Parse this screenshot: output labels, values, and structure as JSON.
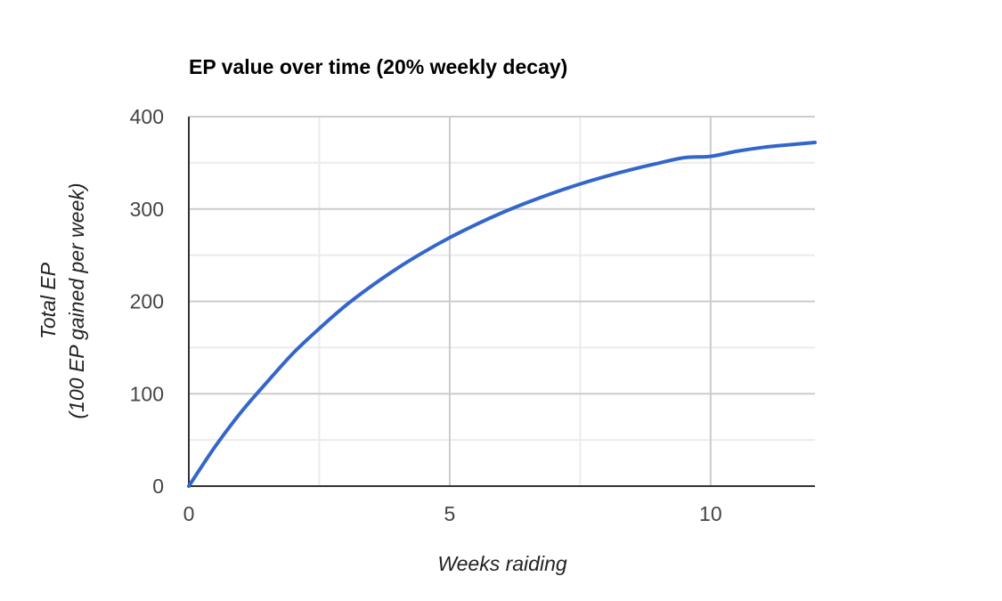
{
  "chart_data": {
    "type": "line",
    "title": "EP value over time (20% weekly decay)",
    "xlabel": "Weeks raiding",
    "ylabel_lines": [
      "Total EP",
      "(100 EP gained per week)"
    ],
    "xlim": [
      0,
      12
    ],
    "ylim": [
      0,
      400
    ],
    "x_ticks": [
      0,
      5,
      10
    ],
    "y_ticks": [
      0,
      100,
      200,
      300,
      400
    ],
    "x_minor_gridlines": [
      2.5,
      7.5
    ],
    "y_minor_gridlines": [
      50,
      150,
      250,
      350
    ],
    "grid": true,
    "legend": "none",
    "series": [
      {
        "color": "#3366cc",
        "x": [
          0,
          0.5,
          1,
          1.5,
          2,
          2.5,
          3,
          3.5,
          4,
          4.5,
          5,
          5.5,
          6,
          6.5,
          7,
          7.5,
          8,
          8.5,
          9,
          9.5,
          10,
          10.5,
          11,
          11.5,
          12
        ],
        "y": [
          0,
          42.5,
          80,
          112.7,
          144,
          170.6,
          195.2,
          216.6,
          236,
          253.3,
          269,
          283.1,
          295.9,
          307.3,
          317.7,
          327.1,
          335.5,
          343,
          349.6,
          355.6,
          357,
          362.5,
          366.7,
          369.5,
          372
        ]
      }
    ],
    "colors": {
      "line": "#3366cc",
      "major_grid": "#cccccc",
      "minor_grid": "#ebebeb",
      "axis": "#333333"
    }
  }
}
